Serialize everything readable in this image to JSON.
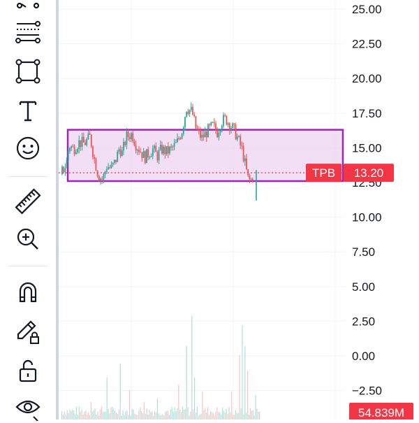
{
  "toolbar": {
    "tools": [
      {
        "name": "trend-line-tool",
        "icon": "trend-line-icon"
      },
      {
        "name": "fib-tool",
        "icon": "fib-retracement-icon"
      },
      {
        "name": "rectangle-tool",
        "icon": "rectangle-icon"
      },
      {
        "name": "text-tool",
        "icon": "text-T-icon"
      },
      {
        "name": "emoji-tool",
        "icon": "smiley-icon"
      },
      {
        "name": "measure-tool",
        "icon": "ruler-icon"
      },
      {
        "name": "zoom-in-tool",
        "icon": "zoom-in-icon"
      },
      {
        "name": "magnet-tool",
        "icon": "magnet-icon"
      },
      {
        "name": "lock-drawing-tool",
        "icon": "pencil-lock-icon"
      },
      {
        "name": "unlock-tool",
        "icon": "unlock-icon"
      },
      {
        "name": "hide-tool",
        "icon": "eye-icon"
      }
    ]
  },
  "chart_data": {
    "type": "candlestick",
    "y_axis_labels": [
      "25.00",
      "22.50",
      "20.00",
      "17.50",
      "15.00",
      "12.50",
      "10.00",
      "7.50",
      "5.00",
      "2.50",
      "0.00",
      "−2.50"
    ],
    "price_tag": {
      "symbol": "TPB",
      "value": "13.20"
    },
    "volume_tag": "54.839M",
    "rectangle_range": [
      12.6,
      16.3
    ],
    "last_price": 13.2,
    "colors": {
      "up": "#26a69a",
      "down": "#ef5350",
      "rect_border": "#9c27b0",
      "rect_fill": "#eed3f2",
      "tag": "#f23645"
    }
  }
}
